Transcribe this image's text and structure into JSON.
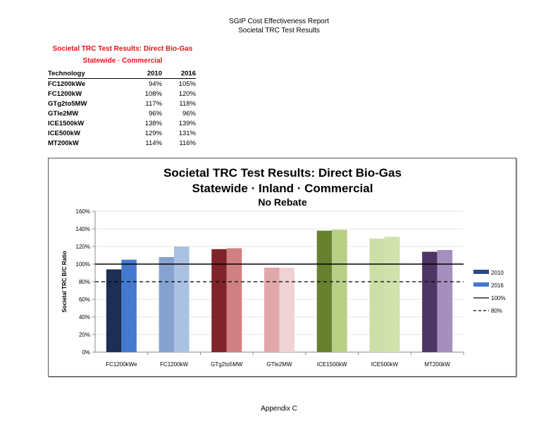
{
  "header": {
    "line1": "SGIP Cost Effectiveness Report",
    "line2": "Societal TRC Test Results"
  },
  "table": {
    "title": "Societal TRC Test Results:  Direct Bio-Gas",
    "subtitle": "Statewide · Commercial",
    "columns": [
      "Technology",
      "2010",
      "2016"
    ],
    "rows": [
      [
        "FC1200kWe",
        "94%",
        "105%"
      ],
      [
        "FC1200kW",
        "108%",
        "120%"
      ],
      [
        "GTg2to5MW",
        "117%",
        "118%"
      ],
      [
        "GTle2MW",
        "96%",
        "96%"
      ],
      [
        "ICE1500kW",
        "138%",
        "139%"
      ],
      [
        "ICE500kW",
        "129%",
        "131%"
      ],
      [
        "MT200kW",
        "114%",
        "116%"
      ]
    ]
  },
  "chart_data": {
    "type": "bar",
    "title": "Societal TRC Test Results:  Direct Bio-Gas",
    "subtitle": "Statewide · Inland · Commercial",
    "subtitle2": "No Rebate",
    "ylabel": "Societal TRC B/C Ratio",
    "xlabel": "",
    "ylim": [
      0,
      160
    ],
    "yticks": [
      "0%",
      "20%",
      "40%",
      "60%",
      "80%",
      "100%",
      "120%",
      "140%",
      "160%"
    ],
    "grid": true,
    "legend_position": "right",
    "categories": [
      "FC1200kWe",
      "FC1200kW",
      "GTg2to5MW",
      "GTle2MW",
      "ICE1500kW",
      "ICE500kW",
      "MT200kW"
    ],
    "series": [
      {
        "name": "2010",
        "values": [
          94,
          108,
          117,
          96,
          138,
          129,
          114
        ],
        "colors": [
          "#1c2e52",
          "#86a3d0",
          "#7e242a",
          "#e0a8aa",
          "#67812f",
          "#c8dc9e",
          "#4d3566"
        ],
        "legend_color": "#2a4a7f"
      },
      {
        "name": "2016",
        "values": [
          105,
          120,
          118,
          96,
          139,
          131,
          116
        ],
        "colors": [
          "#4579cf",
          "#abc1e2",
          "#d08082",
          "#f0d2d4",
          "#b8cf86",
          "#d2e2ac",
          "#a48fbd"
        ],
        "legend_color": "#4579cf"
      }
    ],
    "reference_lines": [
      {
        "name": "100%",
        "value": 100,
        "style": "solid"
      },
      {
        "name": "80%",
        "value": 80,
        "style": "dashed"
      }
    ]
  },
  "footer": "Appendix C"
}
